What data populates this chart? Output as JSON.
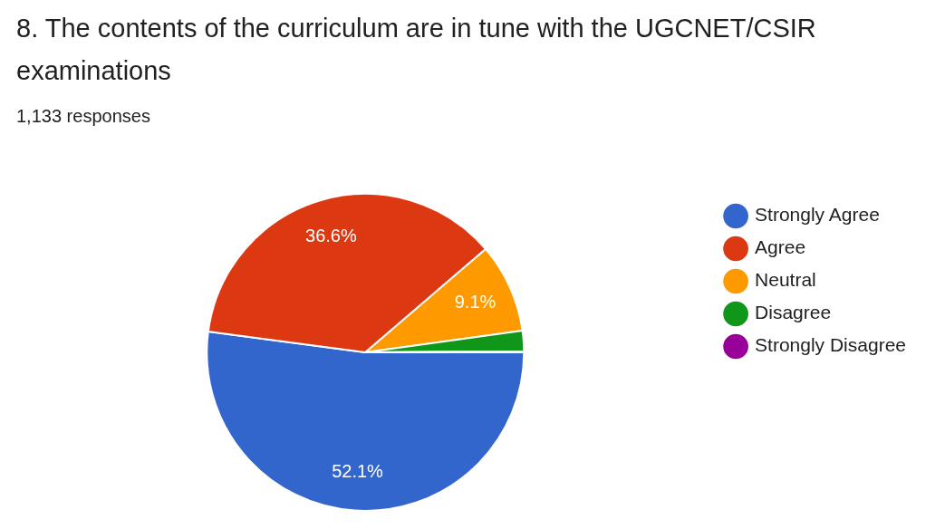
{
  "chart_data": {
    "type": "pie",
    "title": "8. The contents of the curriculum are in tune with the UGCNET/CSIR examinations",
    "subtitle": "1,133 responses",
    "categories": [
      "Strongly Agree",
      "Agree",
      "Neutral",
      "Disagree",
      "Strongly Disagree"
    ],
    "values": [
      52.1,
      36.6,
      9.1,
      2.1,
      0.1
    ],
    "colors": [
      "#3366cc",
      "#dc3912",
      "#ff9900",
      "#109618",
      "#990099"
    ],
    "value_labels": [
      "52.1%",
      "36.6%",
      "9.1%",
      null,
      null
    ],
    "legend": "right"
  }
}
